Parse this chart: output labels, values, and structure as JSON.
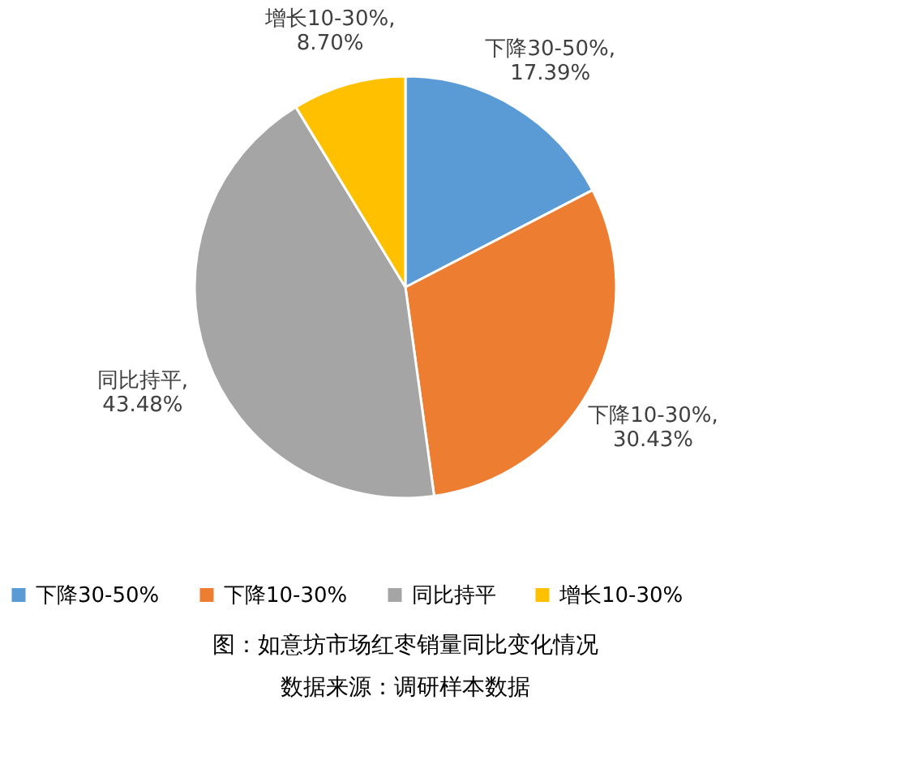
{
  "chart_data": {
    "type": "pie",
    "categories": [
      "下降30-50%",
      "下降10-30%",
      "同比持平",
      "增长10-30%"
    ],
    "values": [
      17.39,
      30.43,
      43.48,
      8.7
    ],
    "colors": [
      "#5b9bd5",
      "#ed7d31",
      "#a5a5a5",
      "#ffc000"
    ],
    "value_labels": [
      "下降30-50%,\n17.39%",
      "下降10-30%,\n30.43%",
      "同比持平,\n43.48%",
      "增长10-30%,\n8.70%"
    ],
    "legend": "bottom",
    "annotations": [
      "图：如意坊市场红枣销量同比变化情况",
      "数据来源：调研样本数据"
    ]
  }
}
